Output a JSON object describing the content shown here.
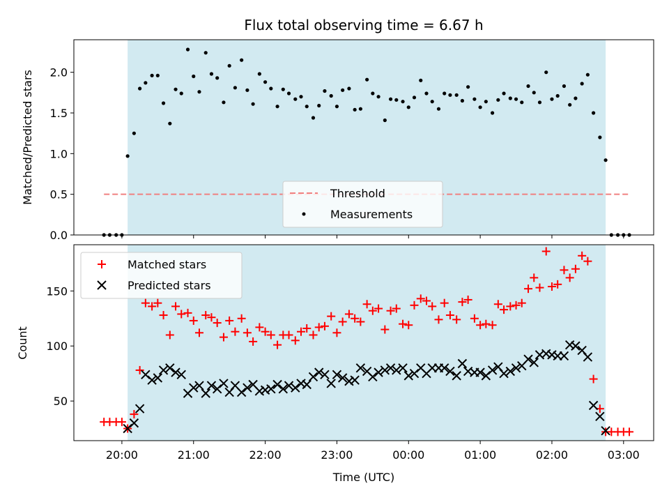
{
  "chart_data": [
    {
      "type": "scatter",
      "title": "Flux total observing time = 6.67 h",
      "ylabel": "Matched/Predicted stars",
      "xlabel": "",
      "ylim": [
        0,
        2.4
      ],
      "yticks": [
        "0.0",
        "0.5",
        "1.0",
        "1.5",
        "2.0"
      ],
      "ytick_values": [
        0,
        0.5,
        1.0,
        1.5,
        2.0
      ],
      "shaded_span": {
        "start_hours": 20.08,
        "end_hours": 26.75,
        "color": "#add8e6"
      },
      "threshold": {
        "name": "Threshold",
        "value": 0.5,
        "color": "#f08080"
      },
      "legend": {
        "placement": "lower center",
        "entries": [
          "Threshold",
          "Measurements"
        ]
      },
      "series": [
        {
          "name": "Measurements",
          "color": "#000000",
          "marker": "dot",
          "points": [
            [
              19.75,
              0
            ],
            [
              19.83,
              0
            ],
            [
              19.92,
              0
            ],
            [
              20.0,
              0
            ],
            [
              20.08,
              0.97
            ],
            [
              20.17,
              1.25
            ],
            [
              20.25,
              1.8
            ],
            [
              20.33,
              1.87
            ],
            [
              20.42,
              1.96
            ],
            [
              20.5,
              1.96
            ],
            [
              20.58,
              1.62
            ],
            [
              20.67,
              1.37
            ],
            [
              20.75,
              1.79
            ],
            [
              20.83,
              1.74
            ],
            [
              20.92,
              2.28
            ],
            [
              21.0,
              1.95
            ],
            [
              21.08,
              1.76
            ],
            [
              21.17,
              2.24
            ],
            [
              21.25,
              1.98
            ],
            [
              21.33,
              1.93
            ],
            [
              21.42,
              1.63
            ],
            [
              21.5,
              2.08
            ],
            [
              21.58,
              1.81
            ],
            [
              21.67,
              2.15
            ],
            [
              21.75,
              1.78
            ],
            [
              21.83,
              1.61
            ],
            [
              21.92,
              1.98
            ],
            [
              22.0,
              1.88
            ],
            [
              22.08,
              1.8
            ],
            [
              22.17,
              1.58
            ],
            [
              22.25,
              1.79
            ],
            [
              22.33,
              1.74
            ],
            [
              22.42,
              1.67
            ],
            [
              22.5,
              1.7
            ],
            [
              22.58,
              1.58
            ],
            [
              22.67,
              1.44
            ],
            [
              22.75,
              1.59
            ],
            [
              22.83,
              1.77
            ],
            [
              22.92,
              1.71
            ],
            [
              23.0,
              1.58
            ],
            [
              23.08,
              1.78
            ],
            [
              23.17,
              1.8
            ],
            [
              23.25,
              1.54
            ],
            [
              23.33,
              1.55
            ],
            [
              23.42,
              1.91
            ],
            [
              23.5,
              1.74
            ],
            [
              23.58,
              1.7
            ],
            [
              23.67,
              1.41
            ],
            [
              23.75,
              1.67
            ],
            [
              23.83,
              1.66
            ],
            [
              23.92,
              1.64
            ],
            [
              24.0,
              1.57
            ],
            [
              24.08,
              1.69
            ],
            [
              24.17,
              1.9
            ],
            [
              24.25,
              1.74
            ],
            [
              24.33,
              1.64
            ],
            [
              24.42,
              1.55
            ],
            [
              24.5,
              1.74
            ],
            [
              24.58,
              1.72
            ],
            [
              24.67,
              1.72
            ],
            [
              24.75,
              1.65
            ],
            [
              24.83,
              1.82
            ],
            [
              24.92,
              1.67
            ],
            [
              25.0,
              1.57
            ],
            [
              25.08,
              1.64
            ],
            [
              25.17,
              1.5
            ],
            [
              25.25,
              1.66
            ],
            [
              25.33,
              1.74
            ],
            [
              25.42,
              1.68
            ],
            [
              25.5,
              1.67
            ],
            [
              25.58,
              1.63
            ],
            [
              25.67,
              1.83
            ],
            [
              25.75,
              1.75
            ],
            [
              25.83,
              1.63
            ],
            [
              25.92,
              2.0
            ],
            [
              26.0,
              1.67
            ],
            [
              26.08,
              1.71
            ],
            [
              26.17,
              1.83
            ],
            [
              26.25,
              1.6
            ],
            [
              26.33,
              1.68
            ],
            [
              26.42,
              1.86
            ],
            [
              26.5,
              1.97
            ],
            [
              26.58,
              1.5
            ],
            [
              26.67,
              1.2
            ],
            [
              26.75,
              0.92
            ],
            [
              26.83,
              0
            ],
            [
              26.92,
              0
            ],
            [
              27.0,
              0
            ],
            [
              27.08,
              0
            ]
          ]
        }
      ]
    },
    {
      "type": "scatter",
      "title": "",
      "ylabel": "Count",
      "xlabel": "Time (UTC)",
      "xlim_hours": [
        19.33,
        27.42
      ],
      "ylim": [
        14,
        192
      ],
      "xticks": [
        "20:00",
        "21:00",
        "22:00",
        "23:00",
        "00:00",
        "01:00",
        "02:00",
        "03:00"
      ],
      "xtick_values": [
        20,
        21,
        22,
        23,
        24,
        25,
        26,
        27
      ],
      "yticks": [
        "50",
        "100",
        "150"
      ],
      "ytick_values": [
        50,
        100,
        150
      ],
      "shaded_span": {
        "start_hours": 20.08,
        "end_hours": 26.75,
        "color": "#add8e6"
      },
      "legend": {
        "placement": "upper left",
        "entries": [
          "Matched stars",
          "Predicted stars"
        ]
      },
      "series": [
        {
          "name": "Matched stars",
          "color": "#ff0000",
          "marker": "plus",
          "points": [
            [
              19.75,
              31
            ],
            [
              19.83,
              31
            ],
            [
              19.92,
              31
            ],
            [
              20.0,
              31
            ],
            [
              20.08,
              25
            ],
            [
              20.17,
              38
            ],
            [
              20.25,
              78
            ],
            [
              20.33,
              139
            ],
            [
              20.42,
              136
            ],
            [
              20.5,
              139
            ],
            [
              20.58,
              128
            ],
            [
              20.67,
              110
            ],
            [
              20.75,
              136
            ],
            [
              20.83,
              129
            ],
            [
              20.92,
              130
            ],
            [
              21.0,
              123
            ],
            [
              21.08,
              112
            ],
            [
              21.17,
              128
            ],
            [
              21.25,
              126
            ],
            [
              21.33,
              121
            ],
            [
              21.42,
              108
            ],
            [
              21.5,
              123
            ],
            [
              21.58,
              113
            ],
            [
              21.67,
              125
            ],
            [
              21.75,
              112
            ],
            [
              21.83,
              104
            ],
            [
              21.92,
              117
            ],
            [
              22.0,
              113
            ],
            [
              22.08,
              110
            ],
            [
              22.17,
              101
            ],
            [
              22.25,
              110
            ],
            [
              22.33,
              110
            ],
            [
              22.42,
              105
            ],
            [
              22.5,
              113
            ],
            [
              22.58,
              116
            ],
            [
              22.67,
              110
            ],
            [
              22.75,
              117
            ],
            [
              22.83,
              118
            ],
            [
              22.92,
              127
            ],
            [
              23.0,
              112
            ],
            [
              23.08,
              122
            ],
            [
              23.17,
              129
            ],
            [
              23.25,
              125
            ],
            [
              23.33,
              122
            ],
            [
              23.42,
              138
            ],
            [
              23.5,
              132
            ],
            [
              23.58,
              134
            ],
            [
              23.67,
              115
            ],
            [
              23.75,
              132
            ],
            [
              23.83,
              134
            ],
            [
              23.92,
              120
            ],
            [
              24.0,
              119
            ],
            [
              24.08,
              137
            ],
            [
              24.17,
              143
            ],
            [
              24.25,
              141
            ],
            [
              24.33,
              136
            ],
            [
              24.42,
              124
            ],
            [
              24.5,
              139
            ],
            [
              24.58,
              128
            ],
            [
              24.67,
              124
            ],
            [
              24.75,
              140
            ],
            [
              24.83,
              142
            ],
            [
              24.92,
              125
            ],
            [
              25.0,
              119
            ],
            [
              25.08,
              120
            ],
            [
              25.17,
              119
            ],
            [
              25.25,
              138
            ],
            [
              25.33,
              133
            ],
            [
              25.42,
              136
            ],
            [
              25.5,
              137
            ],
            [
              25.58,
              139
            ],
            [
              25.67,
              152
            ],
            [
              25.75,
              162
            ],
            [
              25.83,
              153
            ],
            [
              25.92,
              186
            ],
            [
              26.0,
              154
            ],
            [
              26.08,
              156
            ],
            [
              26.17,
              169
            ],
            [
              26.25,
              162
            ],
            [
              26.33,
              170
            ],
            [
              26.42,
              182
            ],
            [
              26.5,
              177
            ],
            [
              26.58,
              70
            ],
            [
              26.67,
              43
            ],
            [
              26.75,
              22
            ],
            [
              26.83,
              22
            ],
            [
              26.92,
              22
            ],
            [
              27.0,
              22
            ],
            [
              27.08,
              22
            ]
          ]
        },
        {
          "name": "Predicted stars",
          "color": "#000000",
          "marker": "x",
          "points": [
            [
              20.08,
              25
            ],
            [
              20.17,
              30
            ],
            [
              20.25,
              43
            ],
            [
              20.33,
              74
            ],
            [
              20.42,
              69
            ],
            [
              20.5,
              71
            ],
            [
              20.58,
              78
            ],
            [
              20.67,
              80
            ],
            [
              20.75,
              76
            ],
            [
              20.83,
              74
            ],
            [
              20.92,
              57
            ],
            [
              21.0,
              62
            ],
            [
              21.08,
              64
            ],
            [
              21.17,
              57
            ],
            [
              21.25,
              64
            ],
            [
              21.33,
              61
            ],
            [
              21.42,
              66
            ],
            [
              21.5,
              58
            ],
            [
              21.58,
              64
            ],
            [
              21.67,
              58
            ],
            [
              21.75,
              62
            ],
            [
              21.83,
              65
            ],
            [
              21.92,
              59
            ],
            [
              22.0,
              60
            ],
            [
              22.08,
              61
            ],
            [
              22.17,
              65
            ],
            [
              22.25,
              61
            ],
            [
              22.33,
              64
            ],
            [
              22.42,
              62
            ],
            [
              22.5,
              66
            ],
            [
              22.58,
              65
            ],
            [
              22.67,
              72
            ],
            [
              22.75,
              76
            ],
            [
              22.83,
              74
            ],
            [
              22.92,
              66
            ],
            [
              23.0,
              74
            ],
            [
              23.08,
              71
            ],
            [
              23.17,
              68
            ],
            [
              23.25,
              69
            ],
            [
              23.33,
              80
            ],
            [
              23.42,
              77
            ],
            [
              23.5,
              72
            ],
            [
              23.58,
              76
            ],
            [
              23.67,
              78
            ],
            [
              23.75,
              80
            ],
            [
              23.83,
              78
            ],
            [
              23.92,
              80
            ],
            [
              24.0,
              73
            ],
            [
              24.08,
              75
            ],
            [
              24.17,
              80
            ],
            [
              24.25,
              75
            ],
            [
              24.33,
              80
            ],
            [
              24.42,
              80
            ],
            [
              24.5,
              80
            ],
            [
              24.58,
              77
            ],
            [
              24.67,
              73
            ],
            [
              24.75,
              84
            ],
            [
              24.83,
              77
            ],
            [
              24.92,
              76
            ],
            [
              25.0,
              76
            ],
            [
              25.08,
              73
            ],
            [
              25.17,
              78
            ],
            [
              25.25,
              81
            ],
            [
              25.33,
              75
            ],
            [
              25.42,
              77
            ],
            [
              25.5,
              80
            ],
            [
              25.58,
              82
            ],
            [
              25.67,
              88
            ],
            [
              25.75,
              85
            ],
            [
              25.83,
              92
            ],
            [
              25.92,
              93
            ],
            [
              26.0,
              92
            ],
            [
              26.08,
              91
            ],
            [
              26.17,
              91
            ],
            [
              26.25,
              101
            ],
            [
              26.33,
              100
            ],
            [
              26.42,
              96
            ],
            [
              26.5,
              90
            ],
            [
              26.58,
              46
            ],
            [
              26.67,
              36
            ],
            [
              26.75,
              23
            ]
          ]
        }
      ]
    }
  ]
}
